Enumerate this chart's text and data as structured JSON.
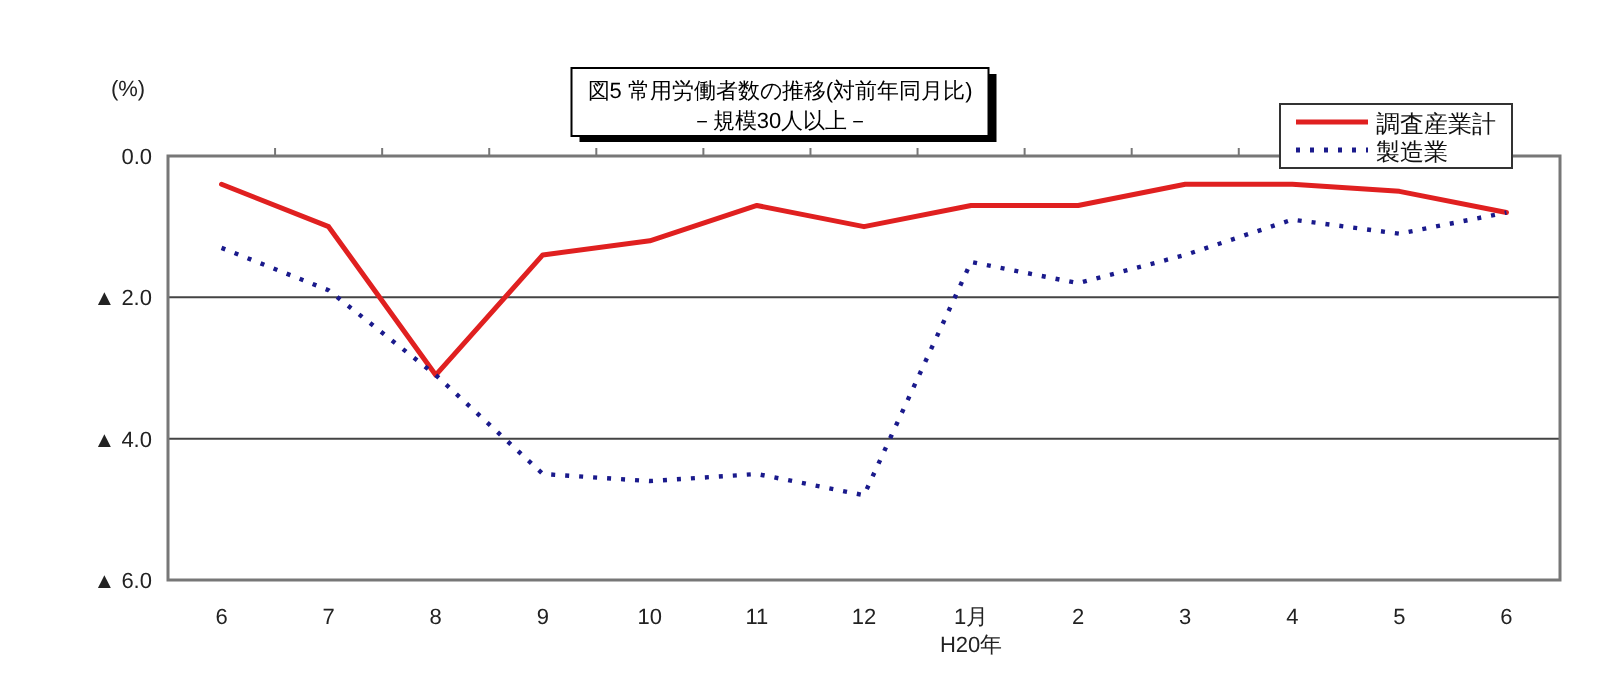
{
  "chart_data": {
    "type": "line",
    "title": "図5  常用労働者数の推移(対前年同月比)",
    "subtitle": "－規模30人以上－",
    "ylabel": "(%)",
    "categories": [
      "6",
      "7",
      "8",
      "9",
      "10",
      "11",
      "12",
      "1月\nH20年",
      "2",
      "3",
      "4",
      "5",
      "6"
    ],
    "series": [
      {
        "name": "調査産業計",
        "color": "#e02020",
        "line_style": "solid",
        "values": [
          -0.4,
          -1.0,
          -3.1,
          -1.4,
          -1.2,
          -0.7,
          -1.0,
          -0.7,
          -0.7,
          -0.4,
          -0.4,
          -0.5,
          -0.8
        ]
      },
      {
        "name": "製造業",
        "color": "#1a1a8c",
        "line_style": "dotted",
        "values": [
          -1.3,
          -1.9,
          -3.1,
          -4.5,
          -4.6,
          -4.5,
          -4.8,
          -1.5,
          -1.8,
          -1.4,
          -0.9,
          -1.1,
          -0.8
        ]
      }
    ],
    "ylim": [
      -6,
      0
    ],
    "yticks": [
      {
        "value": 0,
        "label": "0.0"
      },
      {
        "value": -2,
        "label": "▲ 2.0"
      },
      {
        "value": -4,
        "label": "▲ 4.0"
      },
      {
        "value": -6,
        "label": "▲ 6.0"
      }
    ],
    "grid": "y",
    "legend": "top right"
  }
}
